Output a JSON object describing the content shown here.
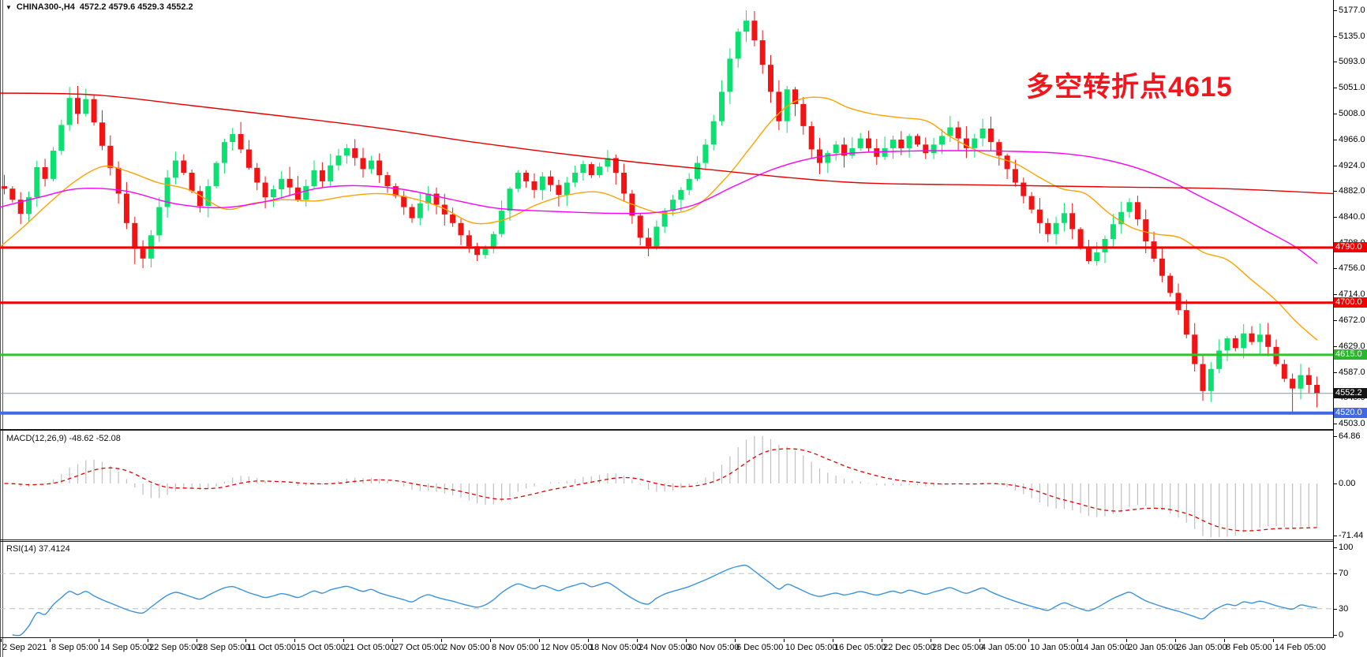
{
  "header": {
    "dropdown_icon": "▼",
    "symbol": "CHINA300-,H4",
    "ohlc": "4572.2 4579.6 4529.3 4552.2"
  },
  "annotation": {
    "text": "多空转折点4615",
    "color": "#f2151c"
  },
  "panels": {
    "macd_label": "MACD(12,26,9) -48.62 -52.08",
    "rsi_label": "RSI(14) 37.4124"
  },
  "price_axis": {
    "ticks": [
      "5177.0",
      "5135.0",
      "5093.0",
      "5051.0",
      "5008.0",
      "4966.0",
      "4924.0",
      "4882.0",
      "4840.0",
      "4798.0",
      "4756.0",
      "4714.0",
      "4672.0",
      "4629.0",
      "4587.0",
      "4545.0",
      "4503.0"
    ],
    "badges": [
      {
        "label": "4790.0",
        "price": 4790,
        "bg": "#ee0000"
      },
      {
        "label": "4700.0",
        "price": 4700,
        "bg": "#ee0000"
      },
      {
        "label": "4615.0",
        "price": 4615,
        "bg": "#2db52d"
      },
      {
        "label": "4552.2",
        "price": 4552.2,
        "bg": "#141414"
      },
      {
        "label": "4520.0",
        "price": 4520,
        "bg": "#4169e1"
      }
    ]
  },
  "macd_axis": [
    {
      "label": "64.86",
      "value": 64.86
    },
    {
      "label": "0.00",
      "value": 0
    },
    {
      "label": "-71.44",
      "value": -71.44
    }
  ],
  "rsi_axis": [
    {
      "label": "100",
      "value": 100
    },
    {
      "label": "70",
      "value": 70
    },
    {
      "label": "30",
      "value": 30
    },
    {
      "label": "0",
      "value": 0
    }
  ],
  "time_axis": [
    "2 Sep 2021",
    "8 Sep 05:00",
    "14 Sep 05:00",
    "22 Sep 05:00",
    "28 Sep 05:00",
    "11 Oct 05:00",
    "15 Oct 05:00",
    "21 Oct 05:00",
    "27 Oct 05:00",
    "2 Nov 05:00",
    "8 Nov 05:00",
    "12 Nov 05:00",
    "18 Nov 05:00",
    "24 Nov 05:00",
    "30 Nov 05:00",
    "6 Dec 05:00",
    "10 Dec 05:00",
    "16 Dec 05:00",
    "22 Dec 05:00",
    "28 Dec 05:00",
    "4 Jan 05:00",
    "10 Jan 05:00",
    "14 Jan 05:00",
    "20 Jan 05:00",
    "26 Jan 05:00",
    "8 Feb 05:00",
    "14 Feb 05:00"
  ],
  "chart_data": {
    "type": "candlestick",
    "title": "CHINA300- H4",
    "timeframe": "H4",
    "ohlc_current": {
      "open": 4572.2,
      "high": 4579.6,
      "low": 4529.3,
      "close": 4552.2
    },
    "price_axis_range": {
      "top": 5177.0,
      "bottom": 4503.0,
      "tick_step": 42
    },
    "first_open": 4890,
    "closes": [
      4886,
      4868,
      4845,
      4872,
      4921,
      4902,
      4948,
      4990,
      5034,
      5008,
      5032,
      4994,
      4956,
      4920,
      4878,
      4830,
      4788,
      4772,
      4810,
      4856,
      4904,
      4932,
      4912,
      4882,
      4858,
      4890,
      4928,
      4962,
      4975,
      4950,
      4920,
      4896,
      4872,
      4885,
      4902,
      4888,
      4868,
      4890,
      4916,
      4898,
      4924,
      4940,
      4952,
      4936,
      4918,
      4932,
      4908,
      4890,
      4874,
      4856,
      4838,
      4862,
      4878,
      4860,
      4844,
      4830,
      4810,
      4792,
      4778,
      4788,
      4812,
      4850,
      4886,
      4912,
      4898,
      4884,
      4906,
      4892,
      4876,
      4896,
      4912,
      4926,
      4908,
      4922,
      4936,
      4912,
      4878,
      4842,
      4806,
      4792,
      4824,
      4850,
      4868,
      4884,
      4902,
      4928,
      4958,
      4996,
      5044,
      5098,
      5142,
      5160,
      5128,
      5088,
      5044,
      4996,
      5048,
      5024,
      4988,
      4950,
      4928,
      4944,
      4958,
      4940,
      4952,
      4968,
      4952,
      4938,
      4952,
      4966,
      4952,
      4972,
      4958,
      4944,
      4958,
      4972,
      4986,
      4968,
      4952,
      4968,
      4984,
      4962,
      4940,
      4918,
      4896,
      4874,
      4852,
      4830,
      4812,
      4830,
      4846,
      4820,
      4790,
      4768,
      4782,
      4804,
      4828,
      4848,
      4864,
      4836,
      4800,
      4772,
      4744,
      4716,
      4688,
      4648,
      4600,
      4556,
      4592,
      4622,
      4642,
      4626,
      4650,
      4636,
      4648,
      4628,
      4600,
      4576,
      4560,
      4582,
      4566,
      4552.2
    ],
    "wick_overrides": {
      "8": {
        "high": 5052
      },
      "16": {
        "low": 4763
      },
      "58": {
        "low": 4768
      },
      "91": {
        "high": 5177
      },
      "147": {
        "low": 4540
      },
      "158": {
        "low": 4521
      },
      "161": {
        "high": 4579.6,
        "low": 4529.3
      }
    },
    "bull_color": "#0be070",
    "bear_color": "#f21414",
    "levels": [
      {
        "price": 4790,
        "color": "#f40000",
        "width": 3
      },
      {
        "price": 4700,
        "color": "#f40000",
        "width": 3
      },
      {
        "price": 4615,
        "color": "#2dc42d",
        "width": 3
      },
      {
        "price": 4552.2,
        "color": "#8a97a5",
        "width": 1
      },
      {
        "price": 4520,
        "color": "#4169e1",
        "width": 4
      }
    ],
    "moving_averages": [
      {
        "name": "ma-fast-orange",
        "color": "#ffa200",
        "width": 1.4,
        "points": [
          [
            0,
            4791
          ],
          [
            30,
            4824
          ],
          [
            60,
            4860
          ],
          [
            95,
            4898
          ],
          [
            130,
            4922
          ],
          [
            160,
            4915
          ],
          [
            200,
            4896
          ],
          [
            240,
            4884
          ],
          [
            285,
            4853
          ],
          [
            320,
            4862
          ],
          [
            360,
            4868
          ],
          [
            400,
            4866
          ],
          [
            440,
            4874
          ],
          [
            480,
            4878
          ],
          [
            520,
            4871
          ],
          [
            560,
            4855
          ],
          [
            600,
            4830
          ],
          [
            640,
            4836
          ],
          [
            680,
            4860
          ],
          [
            720,
            4876
          ],
          [
            760,
            4880
          ],
          [
            800,
            4861
          ],
          [
            840,
            4846
          ],
          [
            880,
            4856
          ],
          [
            920,
            4904
          ],
          [
            950,
            4952
          ],
          [
            980,
            5000
          ],
          [
            1010,
            5030
          ],
          [
            1045,
            5034
          ],
          [
            1075,
            5018
          ],
          [
            1105,
            5008
          ],
          [
            1140,
            5002
          ],
          [
            1175,
            4996
          ],
          [
            1205,
            4970
          ],
          [
            1245,
            4944
          ],
          [
            1285,
            4928
          ],
          [
            1315,
            4906
          ],
          [
            1345,
            4886
          ],
          [
            1375,
            4878
          ],
          [
            1405,
            4846
          ],
          [
            1435,
            4822
          ],
          [
            1465,
            4812
          ],
          [
            1495,
            4806
          ],
          [
            1525,
            4782
          ],
          [
            1555,
            4770
          ],
          [
            1585,
            4738
          ],
          [
            1615,
            4706
          ],
          [
            1640,
            4672
          ],
          [
            1657,
            4652
          ],
          [
            1669,
            4639
          ]
        ]
      },
      {
        "name": "ma-mid-magenta",
        "color": "#ff00ff",
        "width": 1.4,
        "points": [
          [
            0,
            4856
          ],
          [
            50,
            4872
          ],
          [
            100,
            4886
          ],
          [
            160,
            4882
          ],
          [
            220,
            4862
          ],
          [
            280,
            4855
          ],
          [
            340,
            4866
          ],
          [
            400,
            4886
          ],
          [
            450,
            4891
          ],
          [
            510,
            4885
          ],
          [
            570,
            4869
          ],
          [
            630,
            4854
          ],
          [
            700,
            4849
          ],
          [
            770,
            4846
          ],
          [
            830,
            4847
          ],
          [
            880,
            4860
          ],
          [
            930,
            4890
          ],
          [
            980,
            4918
          ],
          [
            1030,
            4936
          ],
          [
            1080,
            4944
          ],
          [
            1140,
            4947
          ],
          [
            1210,
            4948
          ],
          [
            1280,
            4947
          ],
          [
            1340,
            4944
          ],
          [
            1390,
            4936
          ],
          [
            1440,
            4920
          ],
          [
            1480,
            4900
          ],
          [
            1520,
            4874
          ],
          [
            1560,
            4848
          ],
          [
            1600,
            4820
          ],
          [
            1640,
            4792
          ],
          [
            1669,
            4764
          ]
        ]
      },
      {
        "name": "ma-slow-red",
        "color": "#e60000",
        "width": 1.4,
        "points": [
          [
            0,
            5042
          ],
          [
            120,
            5039
          ],
          [
            240,
            5022
          ],
          [
            360,
            5004
          ],
          [
            480,
            4985
          ],
          [
            600,
            4962
          ],
          [
            700,
            4945
          ],
          [
            800,
            4930
          ],
          [
            900,
            4917
          ],
          [
            1000,
            4904
          ],
          [
            1100,
            4895
          ],
          [
            1250,
            4892
          ],
          [
            1400,
            4889
          ],
          [
            1550,
            4886
          ],
          [
            1689,
            4878
          ]
        ]
      }
    ],
    "indicators": {
      "macd": {
        "params": [
          12,
          26,
          9
        ],
        "display_values": [
          -48.62,
          -52.08
        ],
        "axis_labels": [
          64.86,
          0,
          -71.44
        ],
        "histogram_color": "#bfbfbf",
        "signal_color": "#e00000"
      },
      "rsi": {
        "params": [
          14
        ],
        "display_value": 37.4124,
        "levels": [
          70,
          30
        ],
        "line_color": "#3a92dd",
        "level_color": "#c0c0c0"
      }
    }
  }
}
